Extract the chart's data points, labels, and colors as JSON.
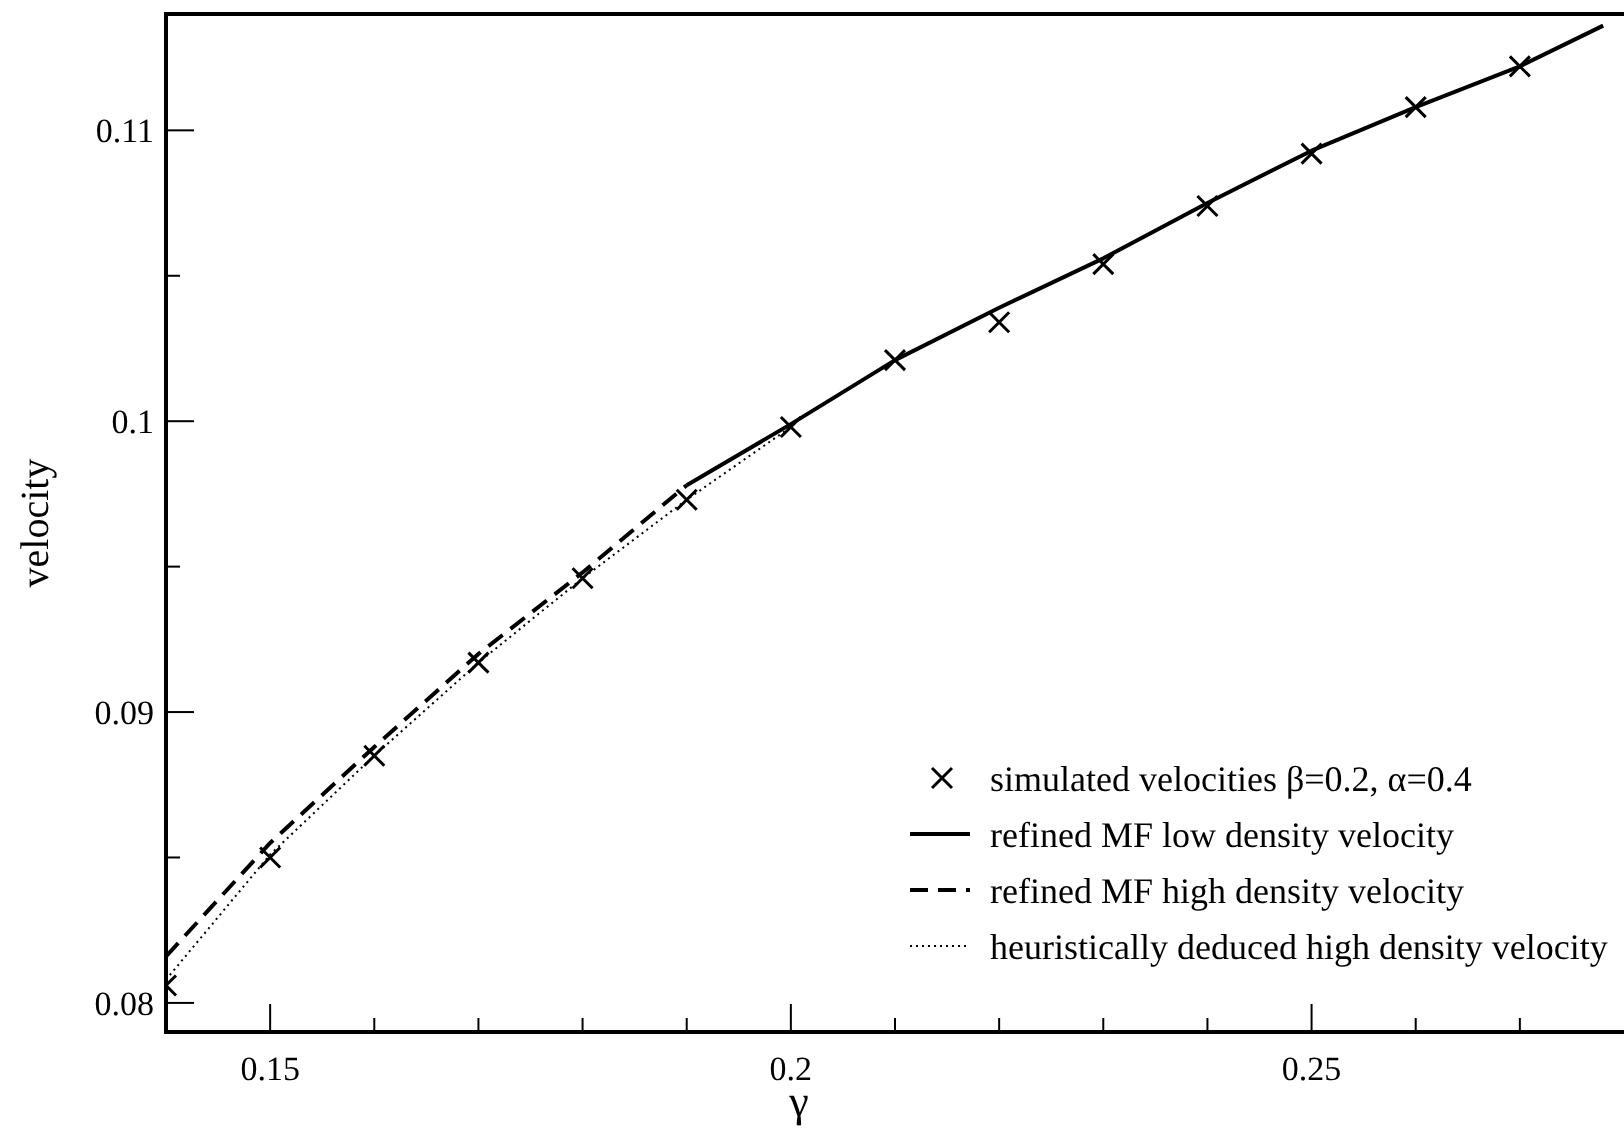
{
  "chart_data": {
    "type": "line",
    "xlabel": "γ",
    "ylabel": "velocity",
    "xlim": [
      0.14,
      0.28
    ],
    "ylim": [
      0.079,
      0.114
    ],
    "xticks": [
      {
        "value": 0.14,
        "label": null
      },
      0.15,
      {
        "value": 0.16,
        "label": null
      },
      {
        "value": 0.17,
        "label": null
      },
      {
        "value": 0.18,
        "label": null
      },
      {
        "value": 0.19,
        "label": null
      },
      0.2,
      {
        "value": 0.21,
        "label": null
      },
      {
        "value": 0.22,
        "label": null
      },
      {
        "value": 0.23,
        "label": null
      },
      {
        "value": 0.24,
        "label": null
      },
      0.25,
      {
        "value": 0.26,
        "label": null
      },
      {
        "value": 0.27,
        "label": null
      }
    ],
    "yticks": [
      0.08,
      {
        "value": 0.085,
        "label": null
      },
      0.09,
      {
        "value": 0.095,
        "label": null
      },
      0.1,
      {
        "value": 0.105,
        "label": null
      },
      0.11
    ],
    "grid": false,
    "legend": "bottom right",
    "series": [
      {
        "name": "simulated velocities β=0.2, α=0.4",
        "type": "scatter",
        "marker": "cross",
        "color": "#000000",
        "x": [
          0.14,
          0.15,
          0.16,
          0.17,
          0.18,
          0.19,
          0.2,
          0.21,
          0.22,
          0.23,
          0.24,
          0.25,
          0.26,
          0.27
        ],
        "values": [
          0.0806,
          0.085,
          0.0885,
          0.0917,
          0.0946,
          0.0973,
          0.0998,
          0.1021,
          0.1034,
          0.1054,
          0.1074,
          0.1092,
          0.1108,
          0.1122
        ]
      },
      {
        "name": "refined MF low density velocity",
        "line_style": "solid",
        "color": "#000000",
        "x": [
          0.19,
          0.2,
          0.21,
          0.22,
          0.23,
          0.24,
          0.25,
          0.26,
          0.27,
          0.278
        ],
        "values": [
          0.0978,
          0.0999,
          0.1021,
          0.1039,
          0.1056,
          0.1075,
          0.1093,
          0.1108,
          0.1122,
          0.1136
        ]
      },
      {
        "name": "refined MF high density velocity",
        "line_style": "dashed",
        "color": "#000000",
        "x": [
          0.14,
          0.15,
          0.16,
          0.17,
          0.18,
          0.19
        ],
        "values": [
          0.0816,
          0.0855,
          0.0888,
          0.092,
          0.0948,
          0.0978
        ]
      },
      {
        "name": "heuristically deduced high density velocity",
        "line_style": "dotted",
        "color": "#000000",
        "x": [
          0.14,
          0.15,
          0.16,
          0.17,
          0.18,
          0.19,
          0.2
        ],
        "values": [
          0.0808,
          0.0851,
          0.0885,
          0.0917,
          0.0946,
          0.0973,
          0.0998
        ]
      }
    ]
  }
}
